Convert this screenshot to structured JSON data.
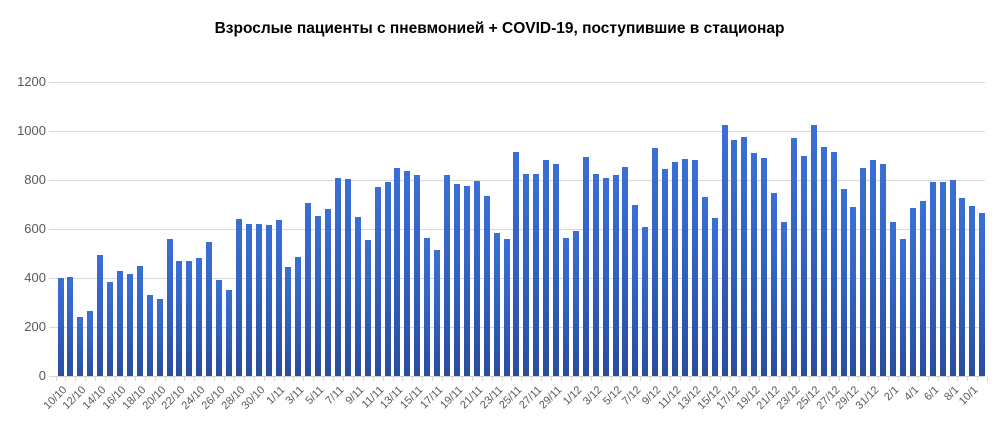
{
  "title": "Взрослые пациенты с пневмонией + COVID-19, поступившие в стационар",
  "colors": {
    "bar_top": "#3b6fd6",
    "bar_bottom": "#2b4d9d",
    "gridline": "#d9d9d9",
    "axis_label": "#595959",
    "title_text": "#000000",
    "background": "#ffffff"
  },
  "chart_data": {
    "type": "bar",
    "title": "Взрослые пациенты с пневмонией + COVID-19, поступившие в стационар",
    "xlabel": "",
    "ylabel": "",
    "ylim": [
      0,
      1200
    ],
    "yticks": [
      0,
      200,
      400,
      600,
      800,
      1000,
      1200
    ],
    "grid": "horizontal",
    "legend": "none",
    "x_tick_label_rotation": 45,
    "x_tick_label_interval": 2,
    "visible_x_tick_labels": [
      "10/10",
      "12/10",
      "14/10",
      "16/10",
      "18/10",
      "20/10",
      "22/10",
      "24/10",
      "26/10",
      "28/10",
      "30/10",
      "1/11",
      "3/11",
      "5/11",
      "7/11",
      "9/11",
      "11/11",
      "13/11",
      "15/11",
      "17/11",
      "19/11",
      "21/11",
      "23/11",
      "25/11",
      "27/11",
      "29/11",
      "1/12",
      "3/12",
      "5/12",
      "7/12",
      "9/12",
      "11/12",
      "13/12",
      "15/12",
      "17/12",
      "19/12",
      "21/12",
      "23/12",
      "25/12",
      "27/12",
      "29/12",
      "31/12",
      "2/1",
      "4/1",
      "6/1",
      "8/1",
      "10/1"
    ],
    "x": [
      "10/10",
      "11/10",
      "12/10",
      "13/10",
      "14/10",
      "15/10",
      "16/10",
      "17/10",
      "18/10",
      "19/10",
      "20/10",
      "21/10",
      "22/10",
      "23/10",
      "24/10",
      "25/10",
      "26/10",
      "27/10",
      "28/10",
      "29/10",
      "30/10",
      "31/10",
      "1/11",
      "2/11",
      "3/11",
      "4/11",
      "5/11",
      "6/11",
      "7/11",
      "8/11",
      "9/11",
      "10/11",
      "11/11",
      "12/11",
      "13/11",
      "14/11",
      "15/11",
      "16/11",
      "17/11",
      "18/11",
      "19/11",
      "20/11",
      "21/11",
      "22/11",
      "23/11",
      "24/11",
      "25/11",
      "26/11",
      "27/11",
      "28/11",
      "29/11",
      "30/11",
      "1/12",
      "2/12",
      "3/12",
      "4/12",
      "5/12",
      "6/12",
      "7/12",
      "8/12",
      "9/12",
      "10/12",
      "11/12",
      "12/12",
      "13/12",
      "14/12",
      "15/12",
      "16/12",
      "17/12",
      "18/12",
      "19/12",
      "20/12",
      "21/12",
      "22/12",
      "23/12",
      "24/12",
      "25/12",
      "26/12",
      "27/12",
      "28/12",
      "29/12",
      "30/12",
      "31/12",
      "1/1",
      "2/1",
      "3/1",
      "4/1",
      "5/1",
      "6/1",
      "7/1",
      "8/1",
      "9/1",
      "10/1",
      "11/1"
    ],
    "values": [
      400,
      405,
      240,
      265,
      495,
      385,
      430,
      415,
      450,
      330,
      315,
      560,
      470,
      470,
      480,
      545,
      390,
      350,
      640,
      620,
      620,
      615,
      635,
      445,
      485,
      705,
      655,
      680,
      810,
      805,
      650,
      555,
      770,
      790,
      850,
      835,
      820,
      565,
      515,
      820,
      785,
      775,
      795,
      735,
      585,
      560,
      915,
      825,
      825,
      880,
      865,
      565,
      590,
      895,
      825,
      810,
      820,
      855,
      700,
      610,
      930,
      845,
      875,
      885,
      880,
      730,
      645,
      1025,
      965,
      975,
      910,
      890,
      745,
      630,
      970,
      900,
      1025,
      935,
      915,
      765,
      690,
      850,
      880,
      865,
      630,
      560,
      685,
      715,
      790,
      790,
      800,
      725,
      695,
      665
    ]
  }
}
